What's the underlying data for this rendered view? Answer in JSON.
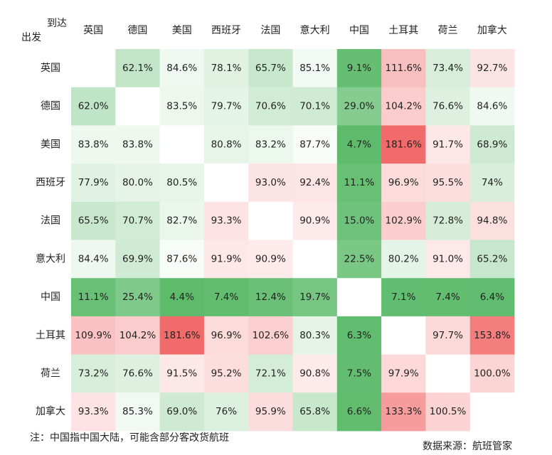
{
  "corner": {
    "to_label": "到达",
    "from_label": "出发"
  },
  "footnote": "注：中国指中国大陆，可能含部分客改货航班",
  "source": "数据来源：航班管家",
  "colors": {
    "low": "#5dbb6b",
    "mid": "#ffffff",
    "high": "#f26b6b",
    "empty": "#ffffff",
    "text": "#222222"
  },
  "chart_data": {
    "type": "heatmap",
    "title": "",
    "xlabel": "到达",
    "ylabel": "出发",
    "columns": [
      "英国",
      "德国",
      "美国",
      "西班牙",
      "法国",
      "意大利",
      "中国",
      "土耳其",
      "荷兰",
      "加拿大"
    ],
    "rows": [
      "英国",
      "德国",
      "美国",
      "西班牙",
      "法国",
      "意大利",
      "中国",
      "土耳其",
      "荷兰",
      "加拿大"
    ],
    "values": [
      [
        null,
        62.1,
        84.6,
        78.1,
        65.7,
        85.1,
        9.1,
        111.6,
        73.4,
        92.7
      ],
      [
        62.0,
        null,
        83.5,
        79.7,
        70.6,
        70.1,
        29.0,
        104.2,
        76.6,
        84.6
      ],
      [
        83.8,
        83.8,
        null,
        80.8,
        83.2,
        87.7,
        4.7,
        181.6,
        91.7,
        68.9
      ],
      [
        77.9,
        80.0,
        80.5,
        null,
        93.0,
        92.4,
        11.1,
        96.9,
        95.5,
        74
      ],
      [
        65.5,
        70.7,
        82.7,
        93.3,
        null,
        90.9,
        15.0,
        102.9,
        72.8,
        94.8
      ],
      [
        84.4,
        69.9,
        87.6,
        91.9,
        90.9,
        null,
        22.5,
        80.2,
        91.0,
        65.2
      ],
      [
        11.1,
        25.4,
        4.4,
        7.4,
        12.4,
        19.7,
        null,
        7.1,
        7.4,
        6.4
      ],
      [
        109.9,
        104.2,
        181.6,
        96.9,
        102.6,
        80.3,
        6.3,
        null,
        97.7,
        153.8
      ],
      [
        73.2,
        76.6,
        91.5,
        95.2,
        72.1,
        90.8,
        7.5,
        97.9,
        null,
        100.0
      ],
      [
        93.3,
        85.3,
        69.0,
        76,
        95.9,
        65.8,
        6.6,
        133.3,
        100.5,
        null
      ]
    ],
    "labels": [
      [
        "",
        "62.1%",
        "84.6%",
        "78.1%",
        "65.7%",
        "85.1%",
        "9.1%",
        "111.6%",
        "73.4%",
        "92.7%"
      ],
      [
        "62.0%",
        "",
        "83.5%",
        "79.7%",
        "70.6%",
        "70.1%",
        "29.0%",
        "104.2%",
        "76.6%",
        "84.6%"
      ],
      [
        "83.8%",
        "83.8%",
        "",
        "80.8%",
        "83.2%",
        "87.7%",
        "4.7%",
        "181.6%",
        "91.7%",
        "68.9%"
      ],
      [
        "77.9%",
        "80.0%",
        "80.5%",
        "",
        "93.0%",
        "92.4%",
        "11.1%",
        "96.9%",
        "95.5%",
        "74%"
      ],
      [
        "65.5%",
        "70.7%",
        "82.7%",
        "93.3%",
        "",
        "90.9%",
        "15.0%",
        "102.9%",
        "72.8%",
        "94.8%"
      ],
      [
        "84.4%",
        "69.9%",
        "87.6%",
        "91.9%",
        "90.9%",
        "",
        "22.5%",
        "80.2%",
        "91.0%",
        "65.2%"
      ],
      [
        "11.1%",
        "25.4%",
        "4.4%",
        "7.4%",
        "12.4%",
        "19.7%",
        "",
        "7.1%",
        "7.4%",
        "6.4%"
      ],
      [
        "109.9%",
        "104.2%",
        "181.6%",
        "96.9%",
        "102.6%",
        "80.3%",
        "6.3%",
        "",
        "97.7%",
        "153.8%"
      ],
      [
        "73.2%",
        "76.6%",
        "91.5%",
        "95.2%",
        "72.1%",
        "90.8%",
        "7.5%",
        "97.9%",
        "",
        "100.0%"
      ],
      [
        "93.3%",
        "85.3%",
        "69.0%",
        "76%",
        "95.9%",
        "65.8%",
        "6.6%",
        "133.3%",
        "100.5%",
        ""
      ]
    ],
    "color_scale": {
      "min": 4.4,
      "mid": 90,
      "max": 181.6
    },
    "legend": "none",
    "grid": false
  }
}
